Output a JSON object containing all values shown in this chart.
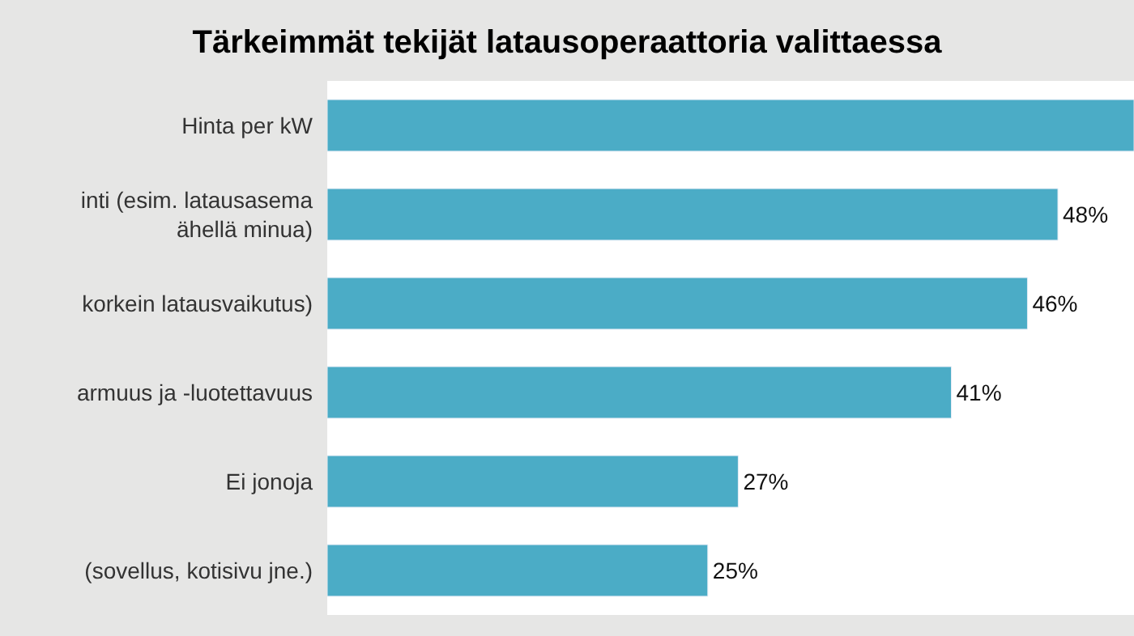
{
  "chart_data": {
    "type": "bar",
    "orientation": "horizontal",
    "title": "Tärkeimmät tekijät latausoperaattoria valittaessa",
    "categories": [
      "Hinta per kW",
      "inti (esim. latausasema\nähellä minua)",
      "korkein latausvaikutus)",
      "armuus ja -luotettavuus",
      "Ei jonoja",
      "(sovellus, kotisivu jne.)"
    ],
    "values": [
      53,
      48,
      46,
      41,
      27,
      25
    ],
    "value_labels": [
      null,
      "48%",
      "46%",
      "41%",
      "27%",
      "25%"
    ],
    "color": "#4bacc6"
  }
}
